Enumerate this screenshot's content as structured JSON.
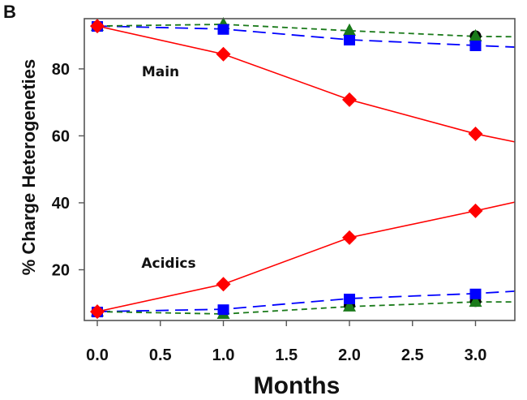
{
  "chart_data": {
    "type": "line",
    "panel_label": "B",
    "title": "",
    "xlabel": "Months",
    "ylabel": "% Charge Heterogeneties",
    "xlim": [
      -0.103,
      3.312
    ],
    "ylim": [
      4.85,
      95.0
    ],
    "xticks": [
      0.0,
      0.5,
      1.0,
      1.5,
      2.0,
      2.5,
      3.0
    ],
    "xtick_labels": [
      "0.0",
      "0.5",
      "1.0",
      "1.5",
      "2.0",
      "2.5",
      "3.0"
    ],
    "yticks": [
      20,
      40,
      60,
      80
    ],
    "ytick_labels": [
      "20",
      "40",
      "60",
      "80"
    ],
    "grid": false,
    "legend": "none",
    "annotations": [
      {
        "text": "Main",
        "x": 0.55,
        "y": 80.5
      },
      {
        "text": "Acidics",
        "x": 0.55,
        "y": 20.5
      }
    ],
    "series": [
      {
        "name": "Main (red)",
        "group": "Main",
        "color": "#ff0000",
        "dash": "solid",
        "marker": "diamond",
        "x": [
          0.0,
          1.0,
          2.0,
          3.0
        ],
        "values": [
          92.8,
          84.4,
          70.8,
          60.6
        ],
        "line_end": [
          3.312,
          58.2
        ]
      },
      {
        "name": "Main (blue)",
        "group": "Main",
        "color": "#0000ff",
        "dash": "long",
        "marker": "square",
        "x": [
          0.0,
          1.0,
          2.0,
          3.0
        ],
        "values": [
          92.8,
          91.9,
          88.7,
          87.0
        ],
        "line_end": [
          3.312,
          86.5
        ]
      },
      {
        "name": "Main (black)",
        "group": "Main",
        "color": "#000000",
        "dash": "none",
        "marker": "circle",
        "x": [
          3.0
        ],
        "values": [
          89.8
        ],
        "line_end": null
      },
      {
        "name": "Main (green)",
        "group": "Main",
        "color": "#1a7a1a",
        "dash": "short",
        "marker": "triangle",
        "x": [
          0.0,
          1.0,
          2.0,
          3.0
        ],
        "values": [
          92.8,
          93.3,
          91.4,
          89.7
        ],
        "line_end": [
          3.312,
          89.6
        ]
      },
      {
        "name": "Acidics (red)",
        "group": "Acidics",
        "color": "#ff0000",
        "dash": "solid",
        "marker": "diamond",
        "x": [
          0.0,
          1.0,
          2.0,
          3.0
        ],
        "values": [
          7.5,
          15.7,
          29.6,
          37.6
        ],
        "line_end": [
          3.312,
          40.2
        ]
      },
      {
        "name": "Acidics (blue)",
        "group": "Acidics",
        "color": "#0000ff",
        "dash": "long",
        "marker": "square",
        "x": [
          0.0,
          1.0,
          2.0,
          3.0
        ],
        "values": [
          7.5,
          8.2,
          11.4,
          12.9
        ],
        "line_end": [
          3.312,
          13.6
        ]
      },
      {
        "name": "Acidics (black)",
        "group": "Acidics",
        "color": "#000000",
        "dash": "none",
        "marker": "circle",
        "x": [
          2.0,
          3.0
        ],
        "values": [
          9.4,
          10.6
        ],
        "line_end": null
      },
      {
        "name": "Acidics (green)",
        "group": "Acidics",
        "color": "#1a7a1a",
        "dash": "short",
        "marker": "triangle",
        "x": [
          0.0,
          1.0,
          2.0,
          3.0
        ],
        "values": [
          7.5,
          6.8,
          9.0,
          10.4
        ],
        "line_end": [
          3.312,
          10.4
        ]
      }
    ]
  }
}
